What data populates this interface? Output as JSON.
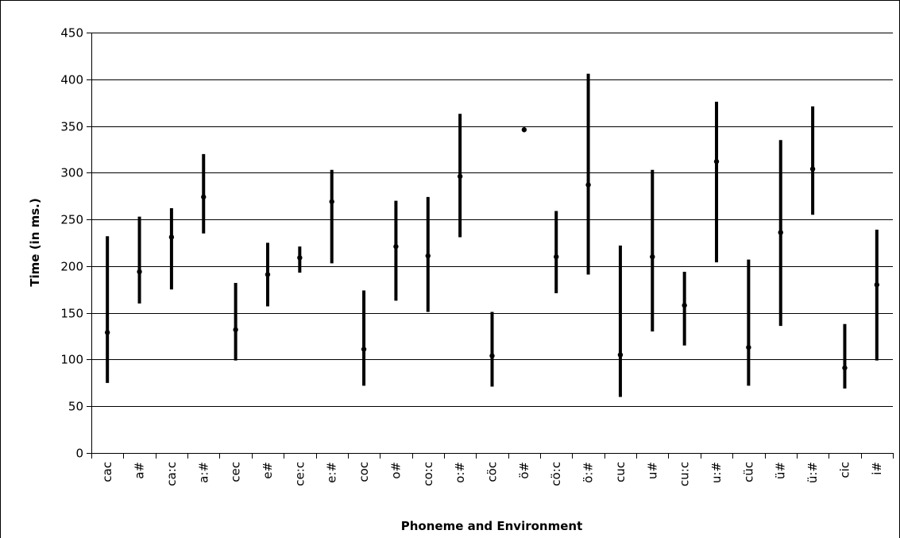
{
  "chart_data": {
    "type": "range",
    "title": "",
    "xlabel": "Phoneme and Environment",
    "ylabel": "Time (in ms.)",
    "ylim": [
      0,
      450
    ],
    "yticks": [
      0,
      50,
      100,
      150,
      200,
      250,
      300,
      350,
      400,
      450
    ],
    "grid": true,
    "legend": "none",
    "colors": {
      "frame": "#000000",
      "grid": "#000000",
      "marks": "#000000",
      "background": "#ffffff"
    },
    "categories": [
      "cac",
      "a#",
      "ca:c",
      "a:#",
      "cec",
      "e#",
      "ce:c",
      "e:#",
      "coc",
      "o#",
      "co:c",
      "o:#",
      "cöc",
      "ö#",
      "cö:c",
      "ö:#",
      "cuc",
      "u#",
      "cu:c",
      "u:#",
      "cüc",
      "ü#",
      "ü:#",
      "cic",
      "i#"
    ],
    "points": [
      {
        "low": 75,
        "high": 232,
        "mean": 129
      },
      {
        "low": 160,
        "high": 253,
        "mean": 194
      },
      {
        "low": 175,
        "high": 262,
        "mean": 231
      },
      {
        "low": 235,
        "high": 320,
        "mean": 274
      },
      {
        "low": 99,
        "high": 182,
        "mean": 132
      },
      {
        "low": 157,
        "high": 225,
        "mean": 191
      },
      {
        "low": 193,
        "high": 221,
        "mean": 209
      },
      {
        "low": 203,
        "high": 303,
        "mean": 269
      },
      {
        "low": 72,
        "high": 174,
        "mean": 111
      },
      {
        "low": 163,
        "high": 270,
        "mean": 221
      },
      {
        "low": 151,
        "high": 274,
        "mean": 211
      },
      {
        "low": 231,
        "high": 363,
        "mean": 296
      },
      {
        "low": 71,
        "high": 151,
        "mean": 104
      },
      {
        "low": 346,
        "high": 346,
        "mean": 346
      },
      {
        "low": 171,
        "high": 259,
        "mean": 210
      },
      {
        "low": 191,
        "high": 406,
        "mean": 287
      },
      {
        "low": 60,
        "high": 222,
        "mean": 105
      },
      {
        "low": 130,
        "high": 303,
        "mean": 210
      },
      {
        "low": 115,
        "high": 194,
        "mean": 158
      },
      {
        "low": 204,
        "high": 376,
        "mean": 312
      },
      {
        "low": 72,
        "high": 207,
        "mean": 113
      },
      {
        "low": 136,
        "high": 335,
        "mean": 236
      },
      {
        "low": 255,
        "high": 371,
        "mean": 304
      },
      {
        "low": 69,
        "high": 138,
        "mean": 91
      },
      {
        "low": 99,
        "high": 239,
        "mean": 180
      }
    ]
  }
}
